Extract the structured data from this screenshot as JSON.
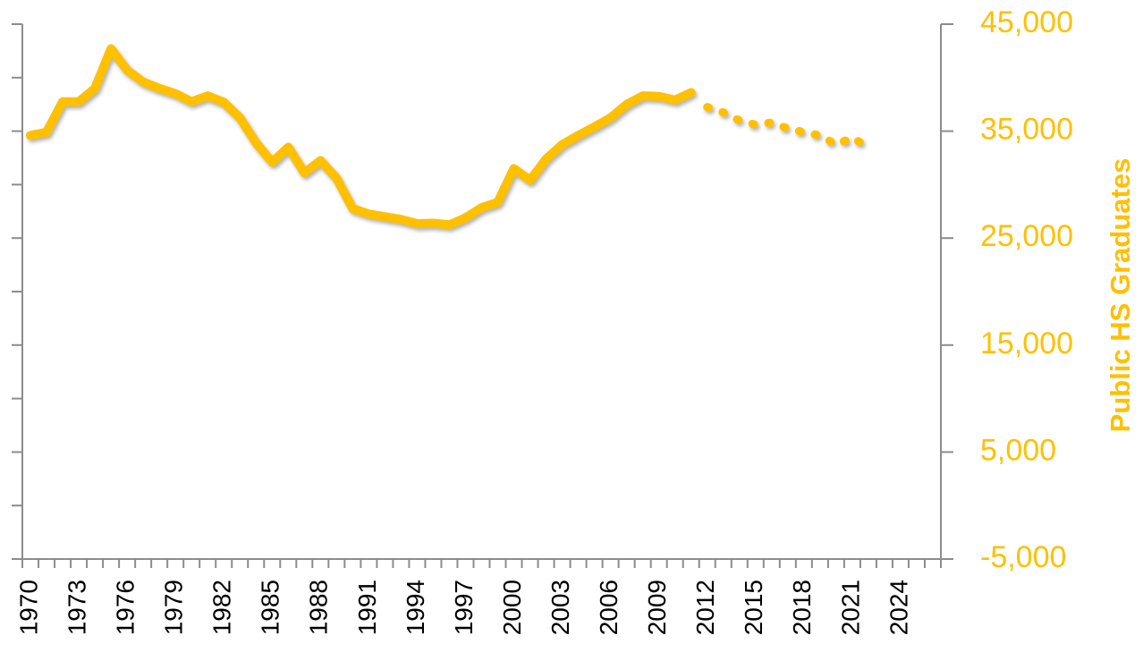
{
  "chart_data": {
    "type": "line",
    "y2label": "Public HS Graduates",
    "categories": [
      1970,
      null,
      null,
      1973,
      null,
      null,
      1976,
      null,
      null,
      1979,
      null,
      null,
      1982,
      null,
      null,
      1985,
      null,
      null,
      1988,
      null,
      null,
      1991,
      null,
      null,
      1994,
      null,
      null,
      1997,
      null,
      null,
      2000,
      null,
      null,
      2003,
      null,
      null,
      2006,
      null,
      null,
      2009,
      null,
      null,
      2012,
      null,
      null,
      2015,
      null,
      null,
      2018,
      null,
      null,
      2021,
      null,
      null,
      2024,
      null,
      null
    ],
    "series": [
      {
        "color": "#FFC000",
        "style": "solid",
        "axis": "y2",
        "values": [
          34600,
          34900,
          37750,
          37750,
          39000,
          42700,
          40700,
          39600,
          39000,
          38500,
          37750,
          38300,
          37700,
          36250,
          33900,
          32100,
          33500,
          31100,
          32250,
          30600,
          27750,
          27250,
          27000,
          26750,
          26350,
          26400,
          26250,
          26900,
          27850,
          28350,
          31500,
          30400,
          32400,
          33750,
          34600,
          35400,
          36250,
          37500,
          38300,
          38250,
          37900,
          38600,
          null,
          null,
          null,
          null,
          null,
          null,
          null,
          null,
          null,
          null,
          null,
          null,
          null,
          null,
          null
        ]
      },
      {
        "color": "#FFC000",
        "style": "dotted",
        "axis": "y2",
        "values": [
          null,
          null,
          null,
          null,
          null,
          null,
          null,
          null,
          null,
          null,
          null,
          null,
          null,
          null,
          null,
          null,
          null,
          null,
          null,
          null,
          null,
          null,
          null,
          null,
          null,
          null,
          null,
          null,
          null,
          null,
          null,
          null,
          null,
          null,
          null,
          null,
          null,
          null,
          null,
          null,
          null,
          null,
          37250,
          36750,
          36000,
          35600,
          35800,
          35250,
          34900,
          34600,
          33750,
          34400,
          33500,
          null,
          null,
          null,
          null
        ]
      }
    ],
    "ylim": [
      -5000,
      45000
    ],
    "yticks": [
      -5000,
      0,
      5000,
      10000,
      15000,
      20000,
      25000,
      30000,
      35000,
      40000,
      45000
    ],
    "y2lim": [
      -5000,
      45000
    ],
    "y2ticks": [
      {
        "value": -5000,
        "label": "-5,000"
      },
      {
        "value": 5000,
        "label": "5,000"
      },
      {
        "value": 15000,
        "label": "15,000"
      },
      {
        "value": 25000,
        "label": "25,000"
      },
      {
        "value": 35000,
        "label": "35,000"
      },
      {
        "value": 45000,
        "label": "45,000"
      }
    ]
  }
}
